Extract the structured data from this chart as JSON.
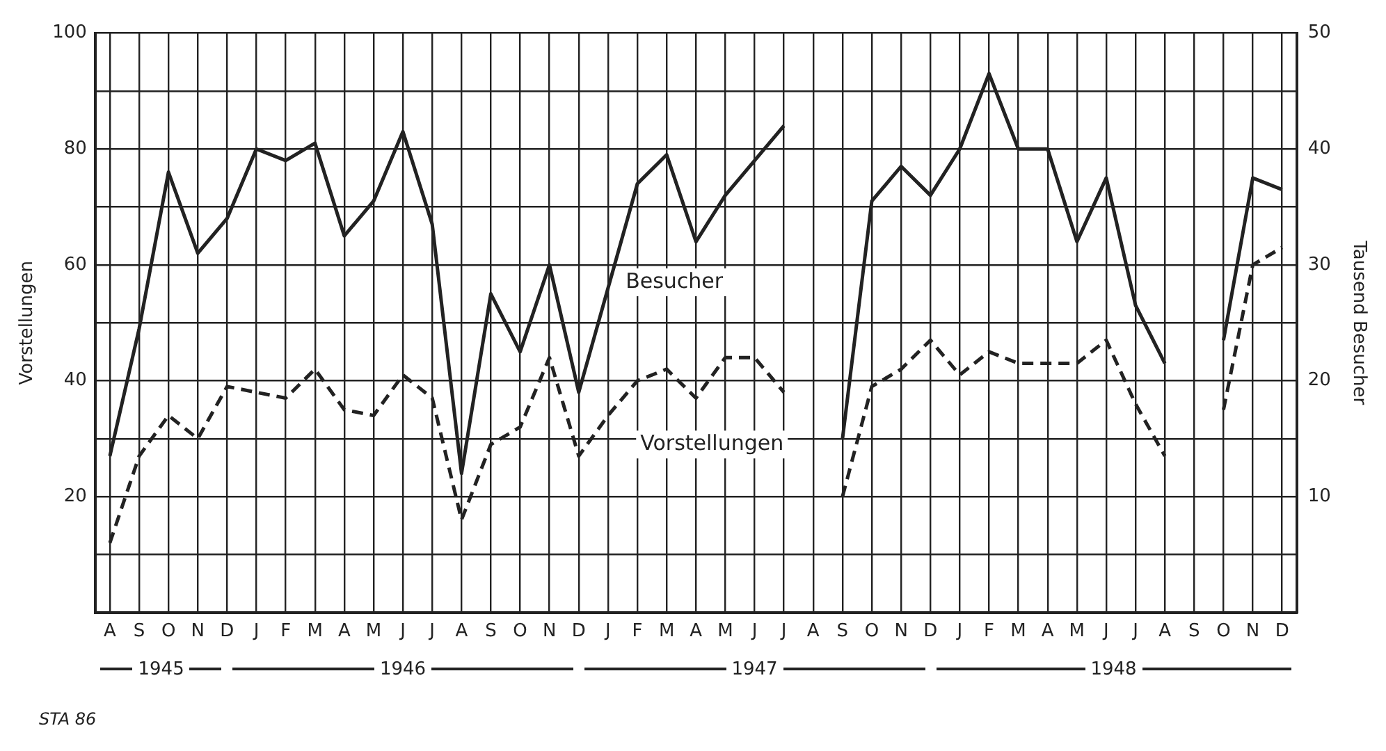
{
  "chart_data": {
    "type": "line",
    "categories": [
      "A",
      "S",
      "O",
      "N",
      "D",
      "J",
      "F",
      "M",
      "A",
      "M",
      "J",
      "J",
      "A",
      "S",
      "O",
      "N",
      "D",
      "J",
      "F",
      "M",
      "A",
      "M",
      "J",
      "J",
      "A",
      "S",
      "O",
      "N",
      "D",
      "J",
      "F",
      "M",
      "A",
      "M",
      "J",
      "J",
      "A",
      "S",
      "O",
      "N",
      "D"
    ],
    "series": [
      {
        "name": "Besucher",
        "color": "#222222",
        "axis": "y2",
        "line_style": "solid",
        "values": [
          13.5,
          24.5,
          38,
          31,
          34,
          40,
          39,
          40.5,
          32.5,
          35.5,
          41.5,
          33.5,
          12,
          27.5,
          22.5,
          30,
          19,
          28,
          37,
          39.5,
          32,
          36,
          39,
          42,
          null,
          15,
          35.5,
          38.5,
          36,
          40,
          46.5,
          40,
          40,
          32,
          37.5,
          26.5,
          21.5,
          null,
          23.5,
          37.5,
          36.5
        ]
      },
      {
        "name": "Vorstellungen",
        "color": "#222222",
        "line_style": "dashed",
        "values": [
          12,
          27,
          34,
          30,
          39,
          38,
          37,
          42,
          35,
          34,
          41,
          37,
          16,
          29,
          32,
          44,
          27,
          34,
          40,
          42,
          37,
          44,
          44,
          38,
          null,
          20,
          39,
          42,
          47,
          41,
          45,
          43,
          43,
          43,
          47,
          36,
          27,
          null,
          35,
          60,
          63
        ]
      }
    ],
    "ylabel": "Vorstellungen",
    "y2label": "Tausend Besucher",
    "ylim": [
      0,
      100
    ],
    "yticks": [
      {
        "value": 0,
        "label": null
      },
      {
        "value": 10,
        "label": null
      },
      20,
      {
        "value": 30,
        "label": null
      },
      40,
      {
        "value": 50,
        "label": null
      },
      60,
      {
        "value": 70,
        "label": null
      },
      80,
      {
        "value": 90,
        "label": null
      },
      100
    ],
    "y2lim": [
      0,
      50
    ],
    "y2ticks": [
      10,
      20,
      30,
      40,
      50
    ],
    "grid": true,
    "legend": false,
    "marker": "none",
    "annotations": [
      "1945",
      "1946",
      "1947",
      "1948",
      "STA 86"
    ]
  }
}
